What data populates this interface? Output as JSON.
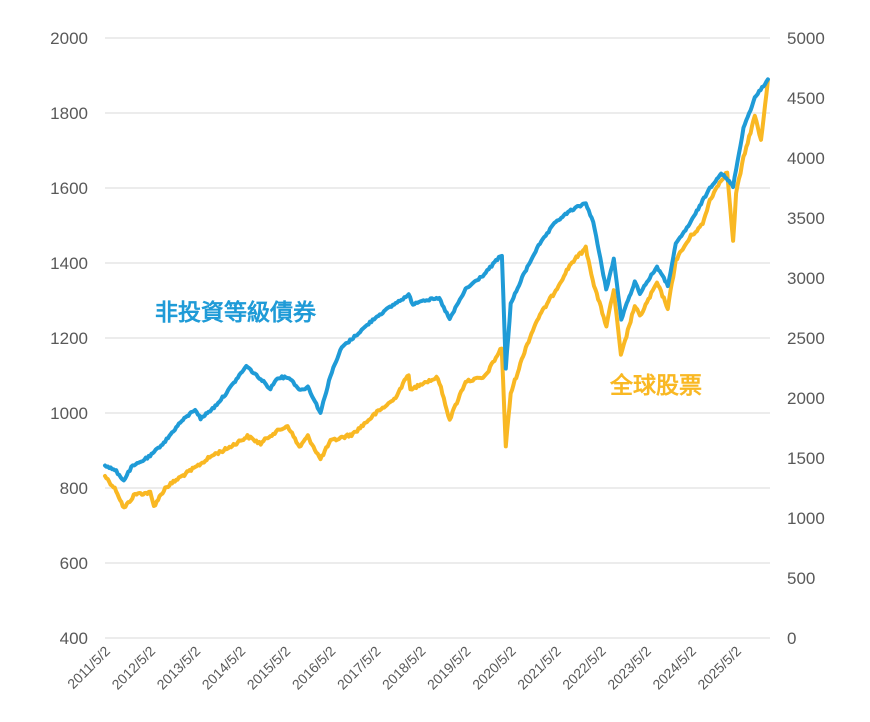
{
  "chart_data": {
    "type": "line",
    "title": "",
    "xlabel": "",
    "ylabel": "",
    "y_left": {
      "min": 400,
      "max": 2000,
      "ticks": [
        400,
        600,
        800,
        1000,
        1200,
        1400,
        1600,
        1800,
        2000
      ]
    },
    "y_right": {
      "min": 0,
      "max": 5000,
      "ticks": [
        0,
        500,
        1000,
        1500,
        2000,
        2500,
        3000,
        3500,
        4000,
        4500,
        5000
      ]
    },
    "x_tick_labels": [
      "2011/5/2",
      "2012/5/2",
      "2013/5/2",
      "2014/5/2",
      "2015/5/2",
      "2016/5/2",
      "2017/5/2",
      "2018/5/2",
      "2019/5/2",
      "2020/5/2",
      "2021/5/2",
      "2022/5/2",
      "2023/5/2",
      "2024/5/2",
      "2025/5/2"
    ],
    "x_range": [
      "2011-05-02",
      "2026-02-01"
    ],
    "grid": true,
    "series": [
      {
        "name": "非投資等級債券",
        "axis": "left",
        "color": "#1f9bd7",
        "points": [
          [
            "2011-05-02",
            860
          ],
          [
            "2011-08-01",
            845
          ],
          [
            "2011-10-01",
            820
          ],
          [
            "2011-12-01",
            855
          ],
          [
            "2012-05-02",
            885
          ],
          [
            "2012-09-01",
            925
          ],
          [
            "2013-01-01",
            975
          ],
          [
            "2013-05-02",
            1010
          ],
          [
            "2013-06-15",
            985
          ],
          [
            "2013-10-01",
            1015
          ],
          [
            "2014-01-01",
            1050
          ],
          [
            "2014-06-20",
            1125
          ],
          [
            "2014-10-15",
            1090
          ],
          [
            "2015-01-01",
            1065
          ],
          [
            "2015-03-01",
            1095
          ],
          [
            "2015-06-01",
            1095
          ],
          [
            "2015-09-01",
            1060
          ],
          [
            "2015-11-01",
            1070
          ],
          [
            "2016-02-11",
            1000
          ],
          [
            "2016-05-02",
            1100
          ],
          [
            "2016-08-01",
            1175
          ],
          [
            "2016-11-01",
            1200
          ],
          [
            "2017-05-02",
            1255
          ],
          [
            "2017-10-01",
            1290
          ],
          [
            "2018-01-26",
            1315
          ],
          [
            "2018-03-01",
            1290
          ],
          [
            "2018-05-02",
            1300
          ],
          [
            "2018-10-01",
            1305
          ],
          [
            "2018-12-24",
            1250
          ],
          [
            "2019-05-02",
            1330
          ],
          [
            "2019-10-01",
            1370
          ],
          [
            "2020-01-15",
            1410
          ],
          [
            "2020-02-20",
            1420
          ],
          [
            "2020-03-23",
            1120
          ],
          [
            "2020-05-02",
            1290
          ],
          [
            "2020-08-01",
            1360
          ],
          [
            "2020-12-01",
            1440
          ],
          [
            "2021-05-02",
            1510
          ],
          [
            "2021-09-01",
            1540
          ],
          [
            "2021-12-31",
            1560
          ],
          [
            "2022-03-01",
            1510
          ],
          [
            "2022-06-15",
            1330
          ],
          [
            "2022-08-15",
            1410
          ],
          [
            "2022-10-15",
            1250
          ],
          [
            "2023-02-01",
            1350
          ],
          [
            "2023-03-15",
            1320
          ],
          [
            "2023-07-31",
            1390
          ],
          [
            "2023-10-27",
            1340
          ],
          [
            "2023-12-31",
            1450
          ],
          [
            "2024-05-02",
            1510
          ],
          [
            "2024-10-01",
            1600
          ],
          [
            "2025-01-01",
            1640
          ],
          [
            "2025-04-08",
            1605
          ],
          [
            "2025-07-01",
            1760
          ],
          [
            "2025-10-01",
            1840
          ],
          [
            "2026-01-15",
            1890
          ]
        ]
      },
      {
        "name": "全球股票",
        "axis": "right",
        "color": "#f9b823",
        "points": [
          [
            "2011-05-02",
            1350
          ],
          [
            "2011-08-01",
            1230
          ],
          [
            "2011-10-03",
            1080
          ],
          [
            "2012-01-01",
            1200
          ],
          [
            "2012-05-02",
            1210
          ],
          [
            "2012-06-01",
            1100
          ],
          [
            "2012-09-01",
            1250
          ],
          [
            "2013-01-01",
            1340
          ],
          [
            "2013-05-02",
            1420
          ],
          [
            "2013-10-01",
            1530
          ],
          [
            "2014-01-01",
            1570
          ],
          [
            "2014-06-30",
            1680
          ],
          [
            "2014-10-15",
            1620
          ],
          [
            "2015-01-01",
            1690
          ],
          [
            "2015-05-21",
            1770
          ],
          [
            "2015-08-24",
            1590
          ],
          [
            "2015-11-01",
            1680
          ],
          [
            "2016-02-11",
            1490
          ],
          [
            "2016-05-02",
            1640
          ],
          [
            "2016-11-01",
            1700
          ],
          [
            "2017-05-02",
            1870
          ],
          [
            "2017-10-01",
            1990
          ],
          [
            "2018-01-26",
            2200
          ],
          [
            "2018-02-09",
            2060
          ],
          [
            "2018-05-02",
            2120
          ],
          [
            "2018-09-20",
            2170
          ],
          [
            "2018-12-24",
            1820
          ],
          [
            "2019-05-02",
            2140
          ],
          [
            "2019-10-01",
            2170
          ],
          [
            "2020-02-19",
            2420
          ],
          [
            "2020-03-23",
            1600
          ],
          [
            "2020-05-02",
            2040
          ],
          [
            "2020-09-01",
            2420
          ],
          [
            "2020-12-01",
            2650
          ],
          [
            "2021-05-02",
            2900
          ],
          [
            "2021-09-01",
            3120
          ],
          [
            "2021-12-31",
            3250
          ],
          [
            "2022-03-08",
            2940
          ],
          [
            "2022-06-16",
            2600
          ],
          [
            "2022-08-15",
            2900
          ],
          [
            "2022-10-12",
            2350
          ],
          [
            "2023-02-01",
            2770
          ],
          [
            "2023-03-15",
            2680
          ],
          [
            "2023-07-31",
            2960
          ],
          [
            "2023-10-27",
            2750
          ],
          [
            "2023-12-31",
            3150
          ],
          [
            "2024-05-02",
            3350
          ],
          [
            "2024-08-05",
            3450
          ],
          [
            "2024-10-01",
            3650
          ],
          [
            "2025-01-01",
            3820
          ],
          [
            "2025-02-19",
            3880
          ],
          [
            "2025-04-08",
            3300
          ],
          [
            "2025-05-02",
            3700
          ],
          [
            "2025-07-01",
            4000
          ],
          [
            "2025-10-01",
            4350
          ],
          [
            "2025-11-20",
            4150
          ],
          [
            "2026-01-15",
            4650
          ]
        ]
      }
    ]
  }
}
